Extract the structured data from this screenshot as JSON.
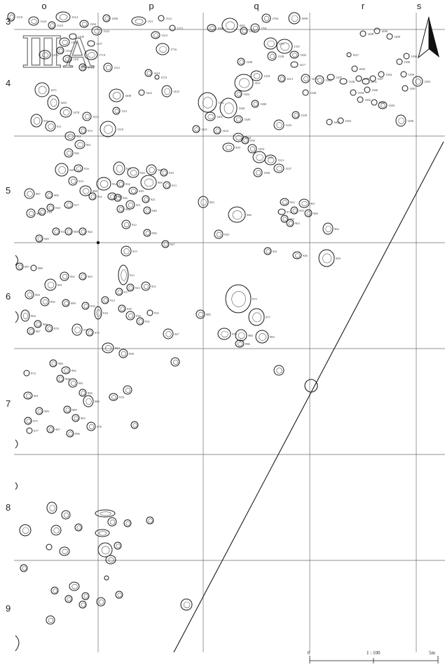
{
  "map": {
    "sheet_label": "ⅢA",
    "columns": [
      "o",
      "p",
      "q",
      "r",
      "s"
    ],
    "rows": [
      "3",
      "4",
      "5",
      "6",
      "7",
      "8",
      "9"
    ],
    "scale": {
      "zero": "0",
      "ratio": "1 : 100",
      "end": "5m"
    },
    "north_arrow_icon": "north-arrow-icon",
    "colors": {
      "line": "#1a1a1a",
      "grid": "#6e6e6e",
      "label": "#333333"
    },
    "feature_labels": [
      "1318",
      "1324",
      "1319",
      "1314",
      "1304",
      "1300",
      "1311",
      "1312",
      "1322",
      "1109",
      "1100",
      "1102",
      "1101",
      "1103",
      "1107",
      "1713",
      "1312",
      "1719",
      "1716",
      "1313",
      "1373",
      "1090",
      "1891",
      "1374",
      "1701",
      "1704",
      "1899",
      "1371",
      "1707",
      "1302",
      "1306",
      "1328",
      "1329",
      "1411",
      "1413",
      "1415",
      "1417",
      "1410",
      "1425",
      "1422",
      "1374",
      "1408",
      "1311",
      "1310",
      "1412",
      "1331",
      "1306",
      "1401",
      "1309",
      "1380",
      "1302",
      "1421",
      "1422",
      "1334",
      "939",
      "939",
      "1303",
      "1301",
      "1312",
      "1337",
      "1396",
      "1325",
      "1339",
      "1340",
      "1363",
      "1307",
      "1338",
      "1027",
      "1003",
      "1037",
      "1031",
      "1350",
      "1302",
      "1366",
      "1367",
      "1394",
      "1383",
      "1300",
      "1306",
      "1399",
      "1390",
      "1393",
      "1387",
      "1296",
      "1365",
      "1402",
      "1408",
      "1406",
      "1409",
      "1471",
      "1403",
      "1478",
      "910",
      "911",
      "931",
      "933",
      "961",
      "936",
      "920",
      "916",
      "919",
      "908",
      "917",
      "918",
      "914",
      "903",
      "907",
      "906",
      "940",
      "931",
      "908",
      "944",
      "932",
      "921",
      "920",
      "909",
      "908",
      "910",
      "913",
      "921",
      "930",
      "932",
      "927",
      "951",
      "940",
      "912",
      "956",
      "947",
      "915",
      "956",
      "932",
      "962",
      "963",
      "966",
      "930",
      "941",
      "926",
      "962",
      "929",
      "952",
      "955",
      "963",
      "967",
      "969",
      "973",
      "974",
      "975",
      "977",
      "979",
      "980",
      "983",
      "985",
      "986",
      "987",
      "988",
      "991",
      "992",
      "993",
      "994",
      "995",
      "999",
      "910",
      "918",
      "914",
      "917",
      "913",
      "923",
      "931",
      "929",
      "930",
      "931",
      "935",
      "947",
      "953",
      "958",
      "964",
      "966",
      "967",
      "970",
      "971",
      "972",
      "988",
      "992",
      "998",
      "981",
      "984",
      "988",
      "989",
      "993",
      "978",
      "996",
      "997",
      "999",
      "991",
      "974",
      "975",
      "977",
      "976"
    ]
  }
}
